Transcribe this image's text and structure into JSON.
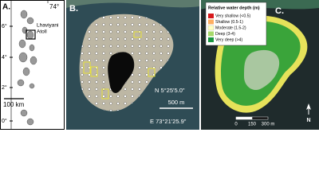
{
  "panel_a": {
    "label": "A.",
    "longitude": "74°",
    "latitudes": [
      "6°",
      "4°",
      "2°",
      "0°"
    ],
    "atoll_name": [
      "Lhaviyani",
      "Atoll"
    ],
    "scale": "100 km"
  },
  "panel_b": {
    "label": "B.",
    "north_coord": "N 5°25'5.0\"",
    "scale": "500 m",
    "east_coord": "E 73°21'25.9\""
  },
  "panel_c": {
    "label": "C.",
    "legend": {
      "title": "Relative water depth (m)",
      "entries": [
        "Very shallow (<0.5)",
        "Shallow (0.5-1)",
        "Moderate (1.5-2)",
        "Deep (3-4)",
        "Very deep (>4)"
      ]
    },
    "scale_labels": [
      "0",
      "150",
      "300 m"
    ],
    "north": "N"
  }
}
